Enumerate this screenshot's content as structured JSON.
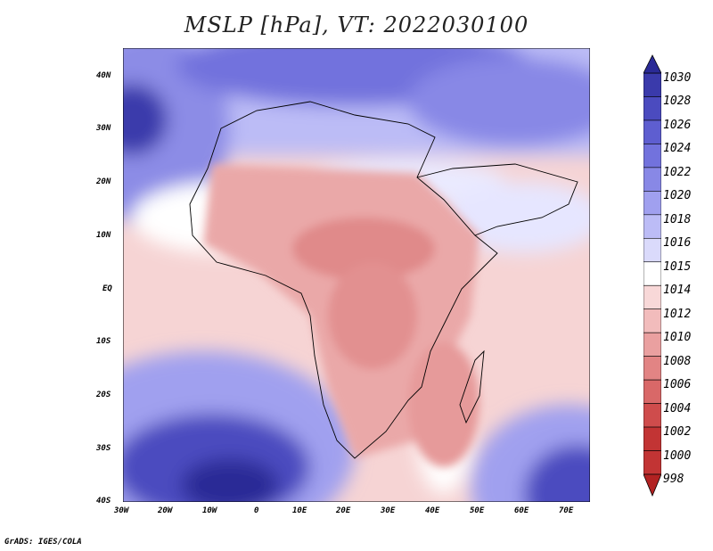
{
  "title": "MSLP [hPa], VT: 2022030100",
  "credit": "GrADS: IGES/COLA",
  "axes": {
    "lon_labels": [
      "30W",
      "20W",
      "10W",
      "0",
      "10E",
      "20E",
      "30E",
      "40E",
      "50E",
      "60E",
      "70E"
    ],
    "lat_labels": [
      "40N",
      "30N",
      "20N",
      "10N",
      "EQ",
      "10S",
      "20S",
      "30S",
      "40S"
    ]
  },
  "colorbar": {
    "levels": [
      "1030",
      "1028",
      "1026",
      "1024",
      "1022",
      "1020",
      "1018",
      "1016",
      "1015",
      "1014",
      "1012",
      "1010",
      "1008",
      "1006",
      "1004",
      "1002",
      "1000",
      "998"
    ],
    "colors": [
      "#2a2a96",
      "#3a3aab",
      "#4b4bbf",
      "#5e5ed0",
      "#7272dd",
      "#8888e6",
      "#a0a0ef",
      "#bcbcf6",
      "#dadafb",
      "#ffffff",
      "#f8d8d8",
      "#f2bcbc",
      "#eaa0a0",
      "#e28484",
      "#d96868",
      "#cf4c4c",
      "#c23434",
      "#b22222"
    ]
  }
}
